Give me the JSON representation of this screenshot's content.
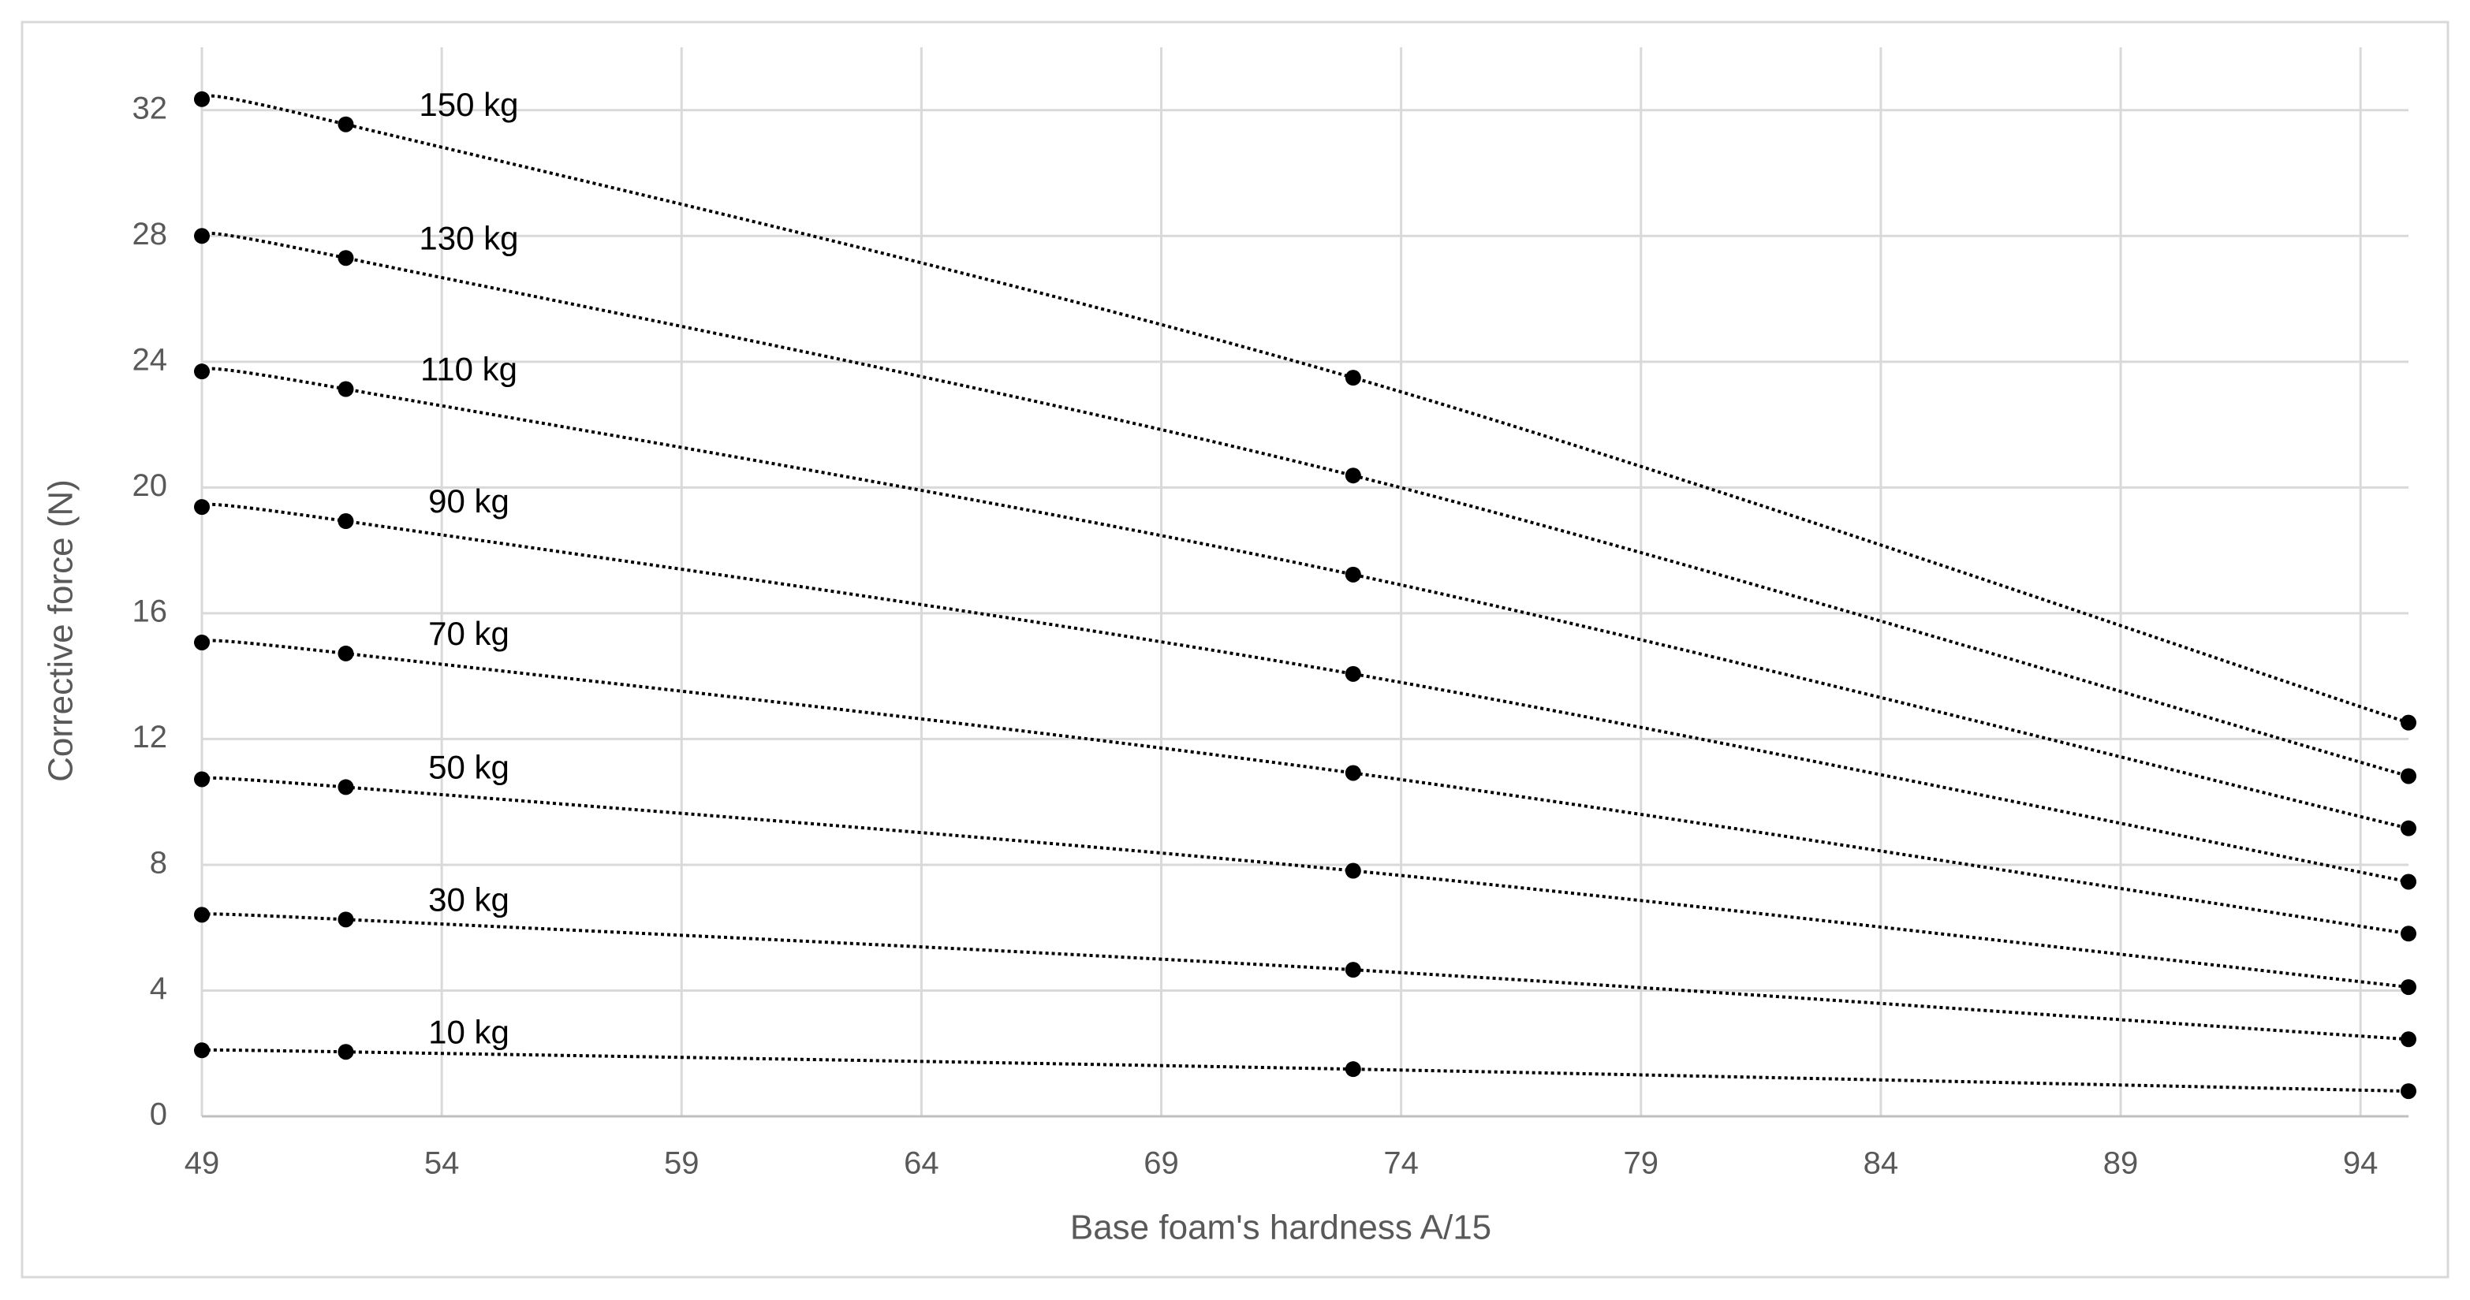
{
  "chart_data": {
    "type": "line",
    "x_label": "Base foam's hardness A/15",
    "y_label": "Corrective force (N)",
    "x": [
      49,
      52,
      73,
      95
    ],
    "series": [
      {
        "name": "150 kg",
        "color": "#000000",
        "values": [
          32.35,
          31.55,
          23.49,
          12.52
        ]
      },
      {
        "name": "130 kg",
        "color": "#000000",
        "values": [
          28.0,
          27.3,
          20.38,
          10.82
        ]
      },
      {
        "name": "110 kg",
        "color": "#000000",
        "values": [
          23.69,
          23.13,
          17.23,
          9.16
        ]
      },
      {
        "name": "90 kg",
        "color": "#000000",
        "values": [
          19.38,
          18.93,
          14.07,
          7.46
        ]
      },
      {
        "name": "70 kg",
        "color": "#000000",
        "values": [
          15.07,
          14.72,
          10.92,
          5.81
        ]
      },
      {
        "name": "50 kg",
        "color": "#000000",
        "values": [
          10.72,
          10.47,
          7.81,
          4.11
        ]
      },
      {
        "name": "30 kg",
        "color": "#000000",
        "values": [
          6.41,
          6.26,
          4.66,
          2.45
        ]
      },
      {
        "name": "10 kg",
        "color": "#000000",
        "values": [
          2.1,
          2.05,
          1.5,
          0.8
        ]
      }
    ],
    "xlim": [
      49,
      95
    ],
    "xticks": [
      49,
      54,
      59,
      64,
      69,
      74,
      79,
      84,
      89,
      94
    ],
    "ylim": [
      0,
      34
    ],
    "yticks": [
      0,
      4,
      8,
      12,
      16,
      20,
      24,
      28,
      32
    ],
    "grid": true
  }
}
